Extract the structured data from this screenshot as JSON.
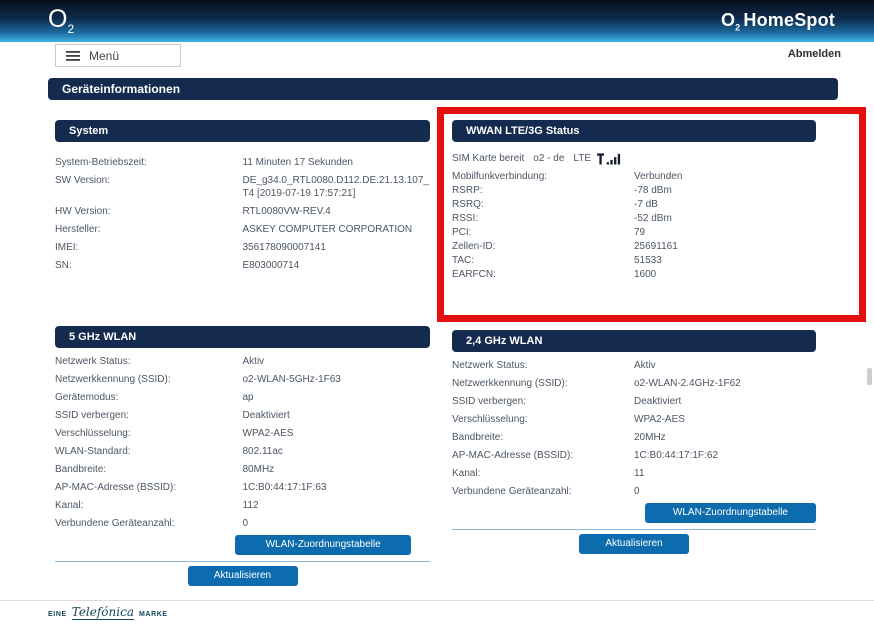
{
  "header": {
    "logo_main": "O",
    "logo_sub": "2",
    "product_main": "O",
    "product_sub": "2",
    "product_name": "HomeSpot"
  },
  "nav": {
    "menu": "Menü",
    "logout": "Abmelden"
  },
  "page_title": "Geräteinformationen",
  "system": {
    "title": "System",
    "rows": [
      {
        "label": "System-Betriebszeit:",
        "value": "11 Minuten 17 Sekunden"
      },
      {
        "label": "SW Version:",
        "value": "DE_g34.0_RTL0080.D112.DE.21.13.107_T4 [2019-07-19 17:57:21]"
      },
      {
        "label": "HW Version:",
        "value": "RTL0080VW-REV.4"
      },
      {
        "label": "Hersteller:",
        "value": "ASKEY COMPUTER CORPORATION"
      },
      {
        "label": "IMEI:",
        "value": "356178090007141"
      },
      {
        "label": "SN:",
        "value": "E803000714"
      }
    ]
  },
  "wwan": {
    "title": "WWAN LTE/3G Status",
    "sim_status": "SIM Karte bereit",
    "network": "o2 - de",
    "technology": "LTE",
    "signal_icon": "signal-bars-icon",
    "rows": [
      {
        "label": "Mobilfunkverbindung:",
        "value": "Verbunden"
      },
      {
        "label": "RSRP:",
        "value": "-78 dBm"
      },
      {
        "label": "RSRQ:",
        "value": "-7 dB"
      },
      {
        "label": "RSSI:",
        "value": "-52 dBm"
      },
      {
        "label": "PCI:",
        "value": "79"
      },
      {
        "label": "Zellen-ID:",
        "value": "25691161"
      },
      {
        "label": "TAC:",
        "value": "51533"
      },
      {
        "label": "EARFCN:",
        "value": "1600"
      }
    ]
  },
  "wlan5": {
    "title": "5 GHz WLAN",
    "rows": [
      {
        "label": "Netzwerk Status:",
        "value": "Aktiv"
      },
      {
        "label": "Netzwerkkennung (SSID):",
        "value": "o2-WLAN-5GHz-1F63"
      },
      {
        "label": "Gerätemodus:",
        "value": "ap"
      },
      {
        "label": "SSID verbergen:",
        "value": "Deaktiviert"
      },
      {
        "label": "Verschlüsselung:",
        "value": "WPA2-AES"
      },
      {
        "label": "WLAN-Standard:",
        "value": "802.11ac"
      },
      {
        "label": "Bandbreite:",
        "value": "80MHz"
      },
      {
        "label": "AP-MAC-Adresse (BSSID):",
        "value": "1C:B0:44:17:1F:63"
      },
      {
        "label": "Kanal:",
        "value": "112"
      },
      {
        "label": "Verbundene Geräteanzahl:",
        "value": "0"
      }
    ],
    "table_button": "WLAN-Zuordnungstabelle",
    "refresh_button": "Aktualisieren"
  },
  "wlan24": {
    "title": "2,4 GHz WLAN",
    "rows": [
      {
        "label": "Netzwerk Status:",
        "value": "Aktiv"
      },
      {
        "label": "Netzwerkkennung (SSID):",
        "value": "o2-WLAN-2.4GHz-1F62"
      },
      {
        "label": "SSID verbergen:",
        "value": "Deaktiviert"
      },
      {
        "label": "Verschlüsselung:",
        "value": "WPA2-AES"
      },
      {
        "label": "Bandbreite:",
        "value": "20MHz"
      },
      {
        "label": "AP-MAC-Adresse (BSSID):",
        "value": "1C:B0:44:17:1F:62"
      },
      {
        "label": "Kanal:",
        "value": "11"
      },
      {
        "label": "Verbundene Geräteanzahl:",
        "value": "0"
      }
    ],
    "table_button": "WLAN-Zuordnungstabelle",
    "refresh_button": "Aktualisieren"
  },
  "footer": {
    "prefix": "EINE",
    "brand": "Telefónica",
    "suffix": "MARKE"
  },
  "colors": {
    "accent": "#0d6cae",
    "navy": "#142a4e",
    "highlight": "#e60f0f",
    "text": "#4b5663",
    "header_top": "#0a0f1a",
    "header_bottom": "#41b2e3"
  }
}
